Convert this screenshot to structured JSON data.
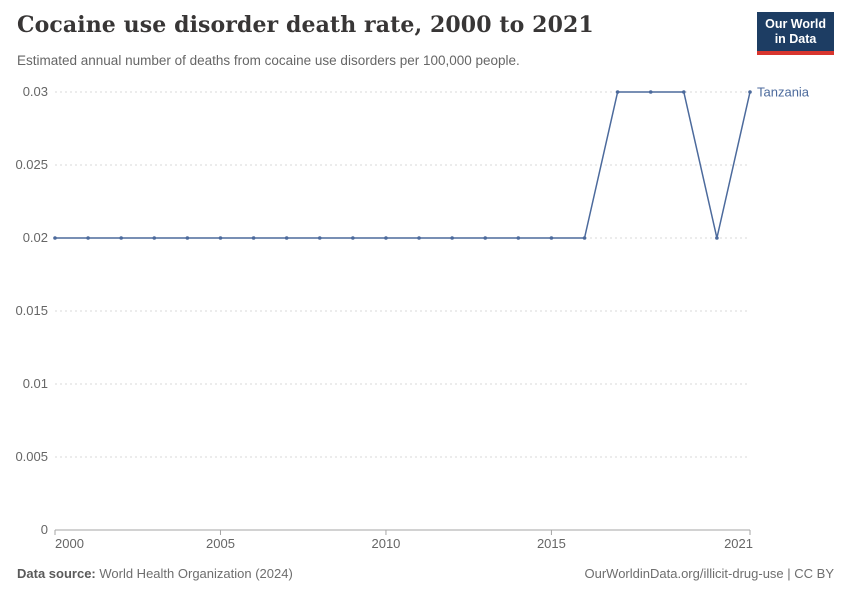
{
  "header": {
    "title": "Cocaine use disorder death rate, 2000 to 2021",
    "subtitle": "Estimated annual number of deaths from cocaine use disorders per 100,000 people.",
    "logo": {
      "line1": "Our World",
      "line2": "in Data",
      "bg_color": "#1d3d63",
      "stripe_color": "#d8352e"
    }
  },
  "chart_data": {
    "type": "line",
    "title": "Cocaine use disorder death rate, 2000 to 2021",
    "xlabel": "",
    "ylabel": "",
    "xlim": [
      2000,
      2021
    ],
    "ylim": [
      0,
      0.03
    ],
    "x_ticks": [
      2000,
      2005,
      2010,
      2015,
      2021
    ],
    "y_ticks": [
      0,
      0.005,
      0.01,
      0.015,
      0.02,
      0.025,
      0.03
    ],
    "grid": "horizontal-dashed",
    "legend_position": "end-of-line-label",
    "x": [
      2000,
      2001,
      2002,
      2003,
      2004,
      2005,
      2006,
      2007,
      2008,
      2009,
      2010,
      2011,
      2012,
      2013,
      2014,
      2015,
      2016,
      2017,
      2018,
      2019,
      2020,
      2021
    ],
    "series": [
      {
        "name": "Tanzania",
        "color": "#4c6a9c",
        "values": [
          0.02,
          0.02,
          0.02,
          0.02,
          0.02,
          0.02,
          0.02,
          0.02,
          0.02,
          0.02,
          0.02,
          0.02,
          0.02,
          0.02,
          0.02,
          0.02,
          0.02,
          0.03,
          0.03,
          0.03,
          0.02,
          0.03
        ]
      }
    ],
    "colors": {
      "grid": "#d9d9d9",
      "axis": "#a5a5a5",
      "tick_label": "#666666"
    }
  },
  "footer": {
    "source_label": "Data source:",
    "source_value": " World Health Organization (2024)",
    "link": "OurWorldinData.org/illicit-drug-use | CC BY"
  }
}
